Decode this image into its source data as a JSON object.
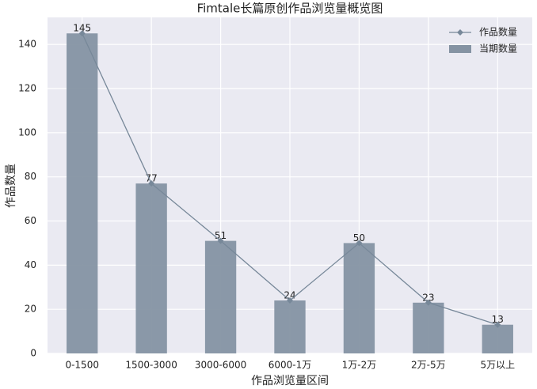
{
  "chart_data": {
    "type": "combo",
    "title": "Fimtale长篇原创作品浏览量概览图",
    "x_label": "作品浏览量区间",
    "y_label": "作品数量",
    "categories": [
      "0-1500",
      "1500-3000",
      "3000-6000",
      "6000-1万",
      "1万-2万",
      "2万-5万",
      "5万以上"
    ],
    "series": [
      {
        "name": "作品数量",
        "type": "line",
        "color": "#778899",
        "values": [
          145,
          77,
          51,
          24,
          50,
          23,
          13
        ]
      },
      {
        "name": "当期数量",
        "type": "bar",
        "color": "#8593a3",
        "values": [
          145,
          77,
          51,
          24,
          50,
          23,
          13
        ]
      }
    ],
    "ylim": [
      0,
      152.25
    ],
    "yticks": [
      0,
      20,
      40,
      60,
      80,
      100,
      120,
      140
    ],
    "grid": true,
    "legend": "upper-right"
  }
}
